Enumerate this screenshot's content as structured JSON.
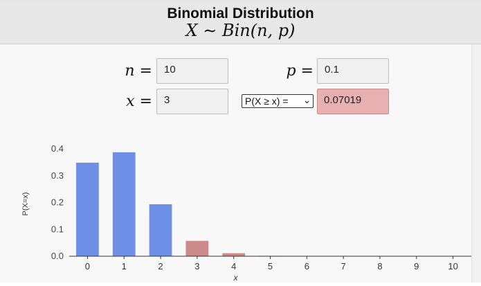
{
  "header": {
    "title": "Binomial Distribution",
    "formula": "X ∼ Bin(n, p)"
  },
  "inputs": {
    "n_label": "n =",
    "n_value": "10",
    "p_label": "p =",
    "p_value": "0.1",
    "x_label": "x =",
    "x_value": "3"
  },
  "probability_select": {
    "selected": "P(X ≥ x) =",
    "chevron": "chevron-down-icon"
  },
  "result": {
    "value": "0.07019"
  },
  "colors": {
    "bar_default": "#6f8fe6",
    "bar_highlight": "#cc8a8a",
    "result_bg": "#e8b1b1"
  },
  "chart_data": {
    "type": "bar",
    "categories": [
      "0",
      "1",
      "2",
      "3",
      "4",
      "5",
      "6",
      "7",
      "8",
      "9",
      "10"
    ],
    "values": [
      0.3487,
      0.3874,
      0.1937,
      0.0574,
      0.0112,
      0.0015,
      0.0001,
      0.0,
      0.0,
      0.0,
      0.0
    ],
    "highlighted": [
      false,
      false,
      false,
      true,
      true,
      true,
      true,
      true,
      true,
      true,
      true
    ],
    "xlabel": "x",
    "ylabel": "P(X=x)",
    "ylim": [
      0,
      0.4
    ],
    "yticks": [
      "0.0",
      "0.1",
      "0.2",
      "0.3",
      "0.4"
    ],
    "grid": false,
    "legend": "none"
  }
}
